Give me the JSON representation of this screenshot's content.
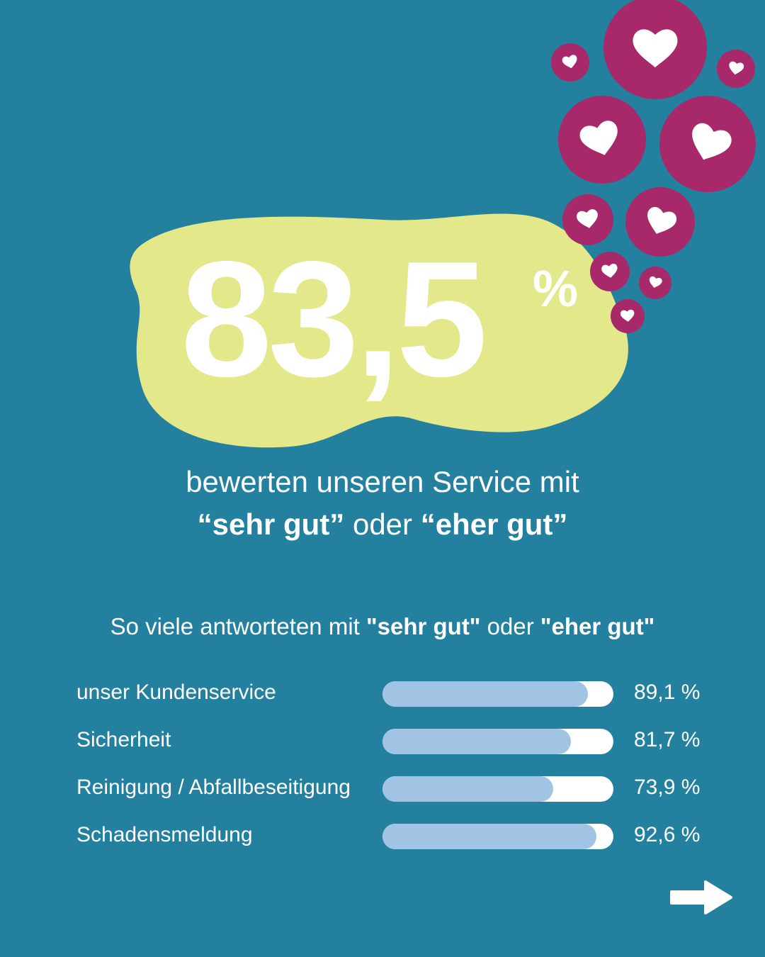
{
  "headline": {
    "value": "83,5",
    "unit": "%",
    "caption_line1": "bewerten unseren Service mit",
    "caption_q1": "“sehr gut”",
    "caption_mid": " oder ",
    "caption_q2": "“eher gut”"
  },
  "subhead": {
    "prefix": "So viele antworteten mit ",
    "q1": "\"sehr gut\"",
    "mid": " oder ",
    "q2": "\"eher gut\""
  },
  "chart_data": {
    "type": "bar",
    "orientation": "horizontal",
    "title": "So viele antworteten mit \"sehr gut\" oder \"eher gut\"",
    "categories": [
      "unser Kundenservice",
      "Sicherheit",
      "Reinigung / Abfallbeseitigung",
      "Schadensmeldung"
    ],
    "values": [
      89.1,
      81.7,
      73.9,
      92.6
    ],
    "value_labels": [
      "89,1 %",
      "81,7 %",
      "73,9 %",
      "92,6 %"
    ],
    "xlim": [
      0,
      100
    ],
    "unit": "%"
  },
  "colors": {
    "background": "#23809f",
    "blob": "#e3e88a",
    "heart_circle": "#a7296a",
    "bar_fill": "#a1c4e4",
    "bar_track": "#ffffff"
  },
  "icons": {
    "hearts": "heart-icon",
    "next": "arrow-right-icon"
  }
}
